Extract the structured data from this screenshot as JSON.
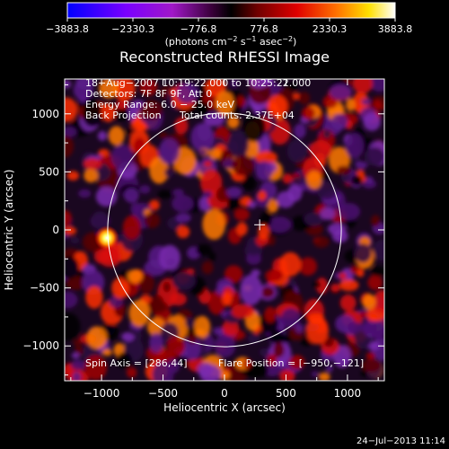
{
  "colorbar": {
    "tick_labels": [
      "−3883.8",
      "−2330.3",
      "−776.8",
      "776.8",
      "2330.3",
      "3883.8"
    ],
    "tick_values": [
      -3883.8,
      -2330.3,
      -776.8,
      776.8,
      2330.3,
      3883.8
    ],
    "min": -3883.8,
    "max": 3883.8,
    "units_main": "(photons cm",
    "units_exp1": "−2",
    "units_mid": " s",
    "units_exp2": "−1",
    "units_mid2": " asec",
    "units_exp3": "−2",
    "units_close": ")",
    "colors": [
      "#0000ff",
      "#7a00ff",
      "#9b10c0",
      "#3a003a",
      "#000000",
      "#7a0000",
      "#e00000",
      "#ff7a00",
      "#ffe000",
      "#ffffff"
    ]
  },
  "title": "Reconstructed RHESSI Image",
  "info_lines": [
    "18−Aug−2007 10:19:22.000 to 10:25:22.000",
    "Detectors: 7F 8F 9F, Att 0",
    "Energy Range: 6.0 − 25.0 keV"
  ],
  "back_projection_label": "Back Projection",
  "total_counts_label": "Total counts: 2.37E+04",
  "spin_axis_label": "Spin Axis = [286,44]",
  "flare_position_label": "Flare Position = [−950,−121]",
  "footer_timestamp": "24−Jul−2013 11:14",
  "chart_data": {
    "type": "heatmap",
    "title": "Reconstructed RHESSI Image",
    "xlabel": "Heliocentric X (arcsec)",
    "ylabel": "Heliocentric Y (arcsec)",
    "xlim": [
      -1300,
      1300
    ],
    "ylim": [
      -1300,
      1300
    ],
    "x_ticks": [
      -1000,
      -500,
      0,
      500,
      1000
    ],
    "x_tick_labels": [
      "−1000",
      "−500",
      "0",
      "500",
      "1000"
    ],
    "y_ticks": [
      -1000,
      -500,
      0,
      500,
      1000
    ],
    "y_tick_labels": [
      "−1000",
      "−500",
      "0",
      "500",
      "1000"
    ],
    "solar_limb_radius_arcsec": 950,
    "solar_center": [
      0,
      0
    ],
    "spin_axis": [
      286,
      44
    ],
    "flare_position": [
      -950,
      -121
    ],
    "peak_intensity": 3883.8,
    "grid": false
  }
}
